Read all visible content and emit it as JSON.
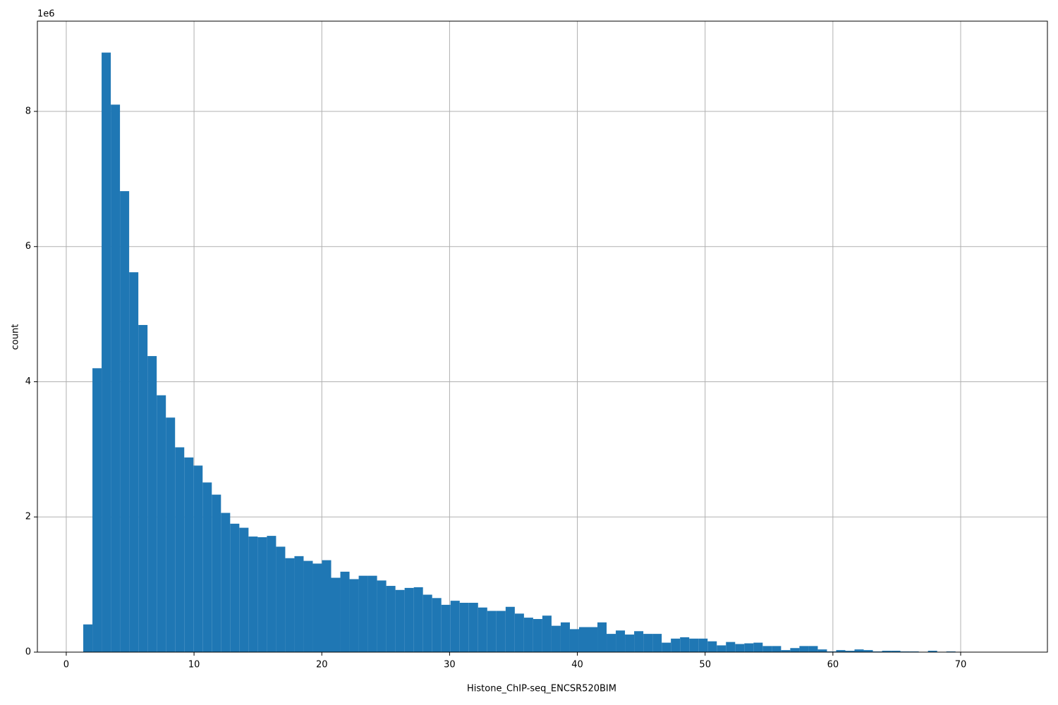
{
  "chart_data": {
    "type": "histogram",
    "xlabel": "Histone_ChIP-seq_ENCSR520BIM",
    "ylabel": "count",
    "y_offset_label": "1e6",
    "color": "#1f77b4",
    "grid": true,
    "xlim": [
      -2.26,
      76.79
    ],
    "ylim": [
      0,
      9335000
    ],
    "xticks": [
      0,
      10,
      20,
      30,
      40,
      50,
      60,
      70
    ],
    "yticks": [
      0,
      {
        "value": 2000000,
        "label": "2"
      },
      {
        "value": 4000000,
        "label": "4"
      },
      {
        "value": 6000000,
        "label": "6"
      },
      {
        "value": 8000000,
        "label": "8"
      }
    ],
    "bins": [
      1.33,
      2.049,
      2.767,
      3.486,
      4.204,
      4.923,
      5.642,
      6.36,
      7.079,
      7.797,
      8.516,
      9.235,
      9.953,
      10.672,
      11.39,
      12.109,
      12.828,
      13.546,
      14.265,
      14.983,
      15.702,
      16.421,
      17.139,
      17.858,
      18.576,
      19.295,
      20.014,
      20.732,
      21.451,
      22.169,
      22.888,
      23.607,
      24.325,
      25.044,
      25.762,
      26.481,
      27.2,
      27.918,
      28.637,
      29.355,
      30.074,
      30.793,
      31.511,
      32.23,
      32.948,
      33.667,
      34.386,
      35.104,
      35.823,
      36.541,
      37.26,
      37.979,
      38.697,
      39.416,
      40.134,
      40.853,
      41.572,
      42.29,
      43.009,
      43.727,
      44.446,
      45.165,
      45.883,
      46.602,
      47.32,
      48.039,
      48.758,
      49.476,
      50.195,
      50.913,
      51.632,
      52.351,
      53.069,
      53.788,
      54.506,
      55.225,
      55.944,
      56.662,
      57.381,
      58.099,
      58.818,
      59.537,
      60.255,
      60.974,
      61.692,
      62.411,
      63.13,
      63.848,
      64.567,
      65.285,
      66.004,
      66.723,
      67.441,
      68.16,
      68.878,
      69.597,
      70.316,
      71.034,
      71.753,
      72.471,
      73.19
    ],
    "values": [
      410000,
      4200000,
      8870000,
      8100000,
      6820000,
      5620000,
      4840000,
      4380000,
      3800000,
      3470000,
      3030000,
      2880000,
      2760000,
      2510000,
      2330000,
      2060000,
      1900000,
      1840000,
      1710000,
      1700000,
      1720000,
      1560000,
      1390000,
      1420000,
      1350000,
      1310000,
      1360000,
      1100000,
      1190000,
      1080000,
      1130000,
      1130000,
      1060000,
      980000,
      920000,
      950000,
      960000,
      850000,
      800000,
      700000,
      760000,
      730000,
      730000,
      660000,
      610000,
      610000,
      670000,
      570000,
      510000,
      490000,
      540000,
      390000,
      440000,
      340000,
      370000,
      370000,
      440000,
      270000,
      320000,
      260000,
      310000,
      270000,
      270000,
      140000,
      200000,
      220000,
      200000,
      200000,
      160000,
      100000,
      150000,
      120000,
      130000,
      140000,
      90000,
      90000,
      30000,
      60000,
      90000,
      90000,
      40000,
      10000,
      30000,
      20000,
      40000,
      30000,
      10000,
      20000,
      20000,
      10000,
      10000,
      0,
      20000,
      0,
      10000,
      0,
      0,
      0,
      0,
      0
    ]
  }
}
